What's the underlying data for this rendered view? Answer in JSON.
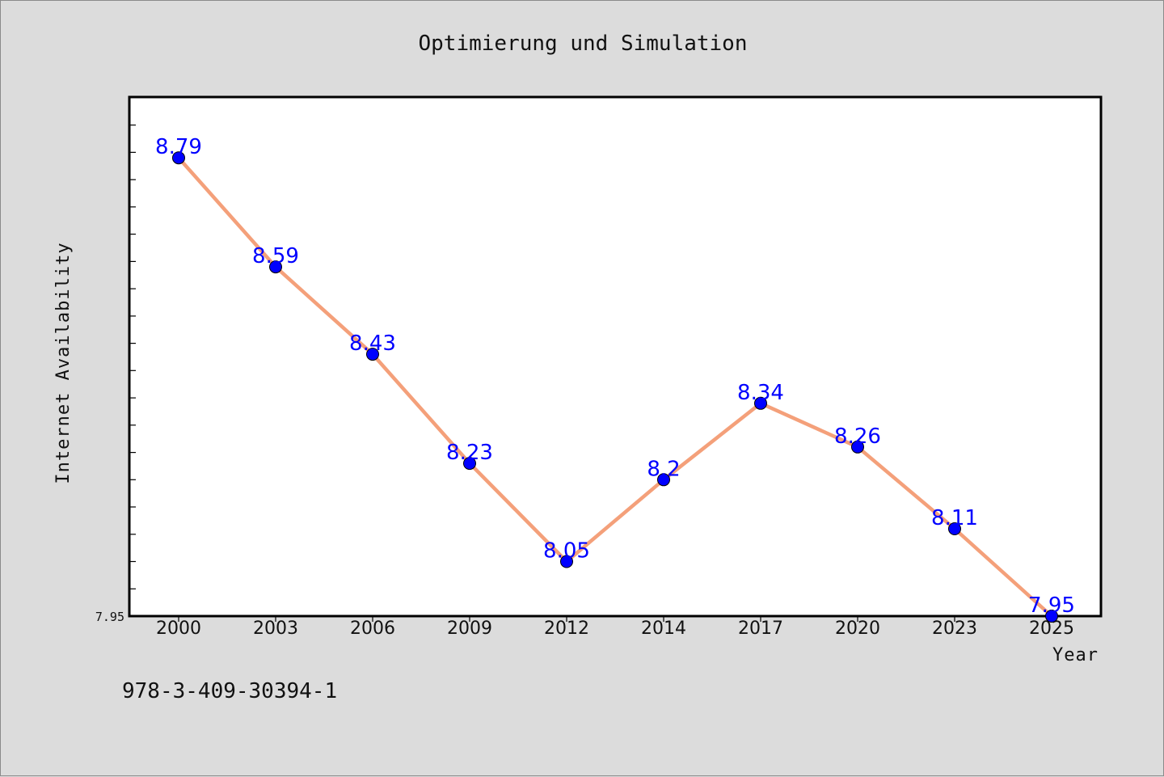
{
  "chart_data": {
    "type": "line",
    "title": "Optimierung und Simulation",
    "xlabel": "Year",
    "ylabel": "Internet Availability",
    "categories": [
      "2000",
      "2003",
      "2006",
      "2009",
      "2012",
      "2014",
      "2017",
      "2020",
      "2023",
      "2025"
    ],
    "series": [
      {
        "values": [
          8.79,
          8.59,
          8.43,
          8.23,
          8.05,
          8.2,
          8.34,
          8.26,
          8.11,
          7.95
        ],
        "labels": [
          "8.79",
          "8.59",
          "8.43",
          "8.23",
          "8.05",
          "8.2",
          "8.34",
          "8.26",
          "8.11",
          "7.95"
        ],
        "line_color": "#f4a07a",
        "marker_color": "#0000ff",
        "label_color": "#0000ff"
      }
    ],
    "ylim": [
      7.95,
      8.9
    ],
    "ytick_labels": [
      "7.95"
    ],
    "grid": false,
    "legend": "none"
  },
  "footnote": "978-3-409-30394-1",
  "colors": {
    "background": "#dcdcdc",
    "plot_background": "#ffffff",
    "axis": "#000000"
  }
}
